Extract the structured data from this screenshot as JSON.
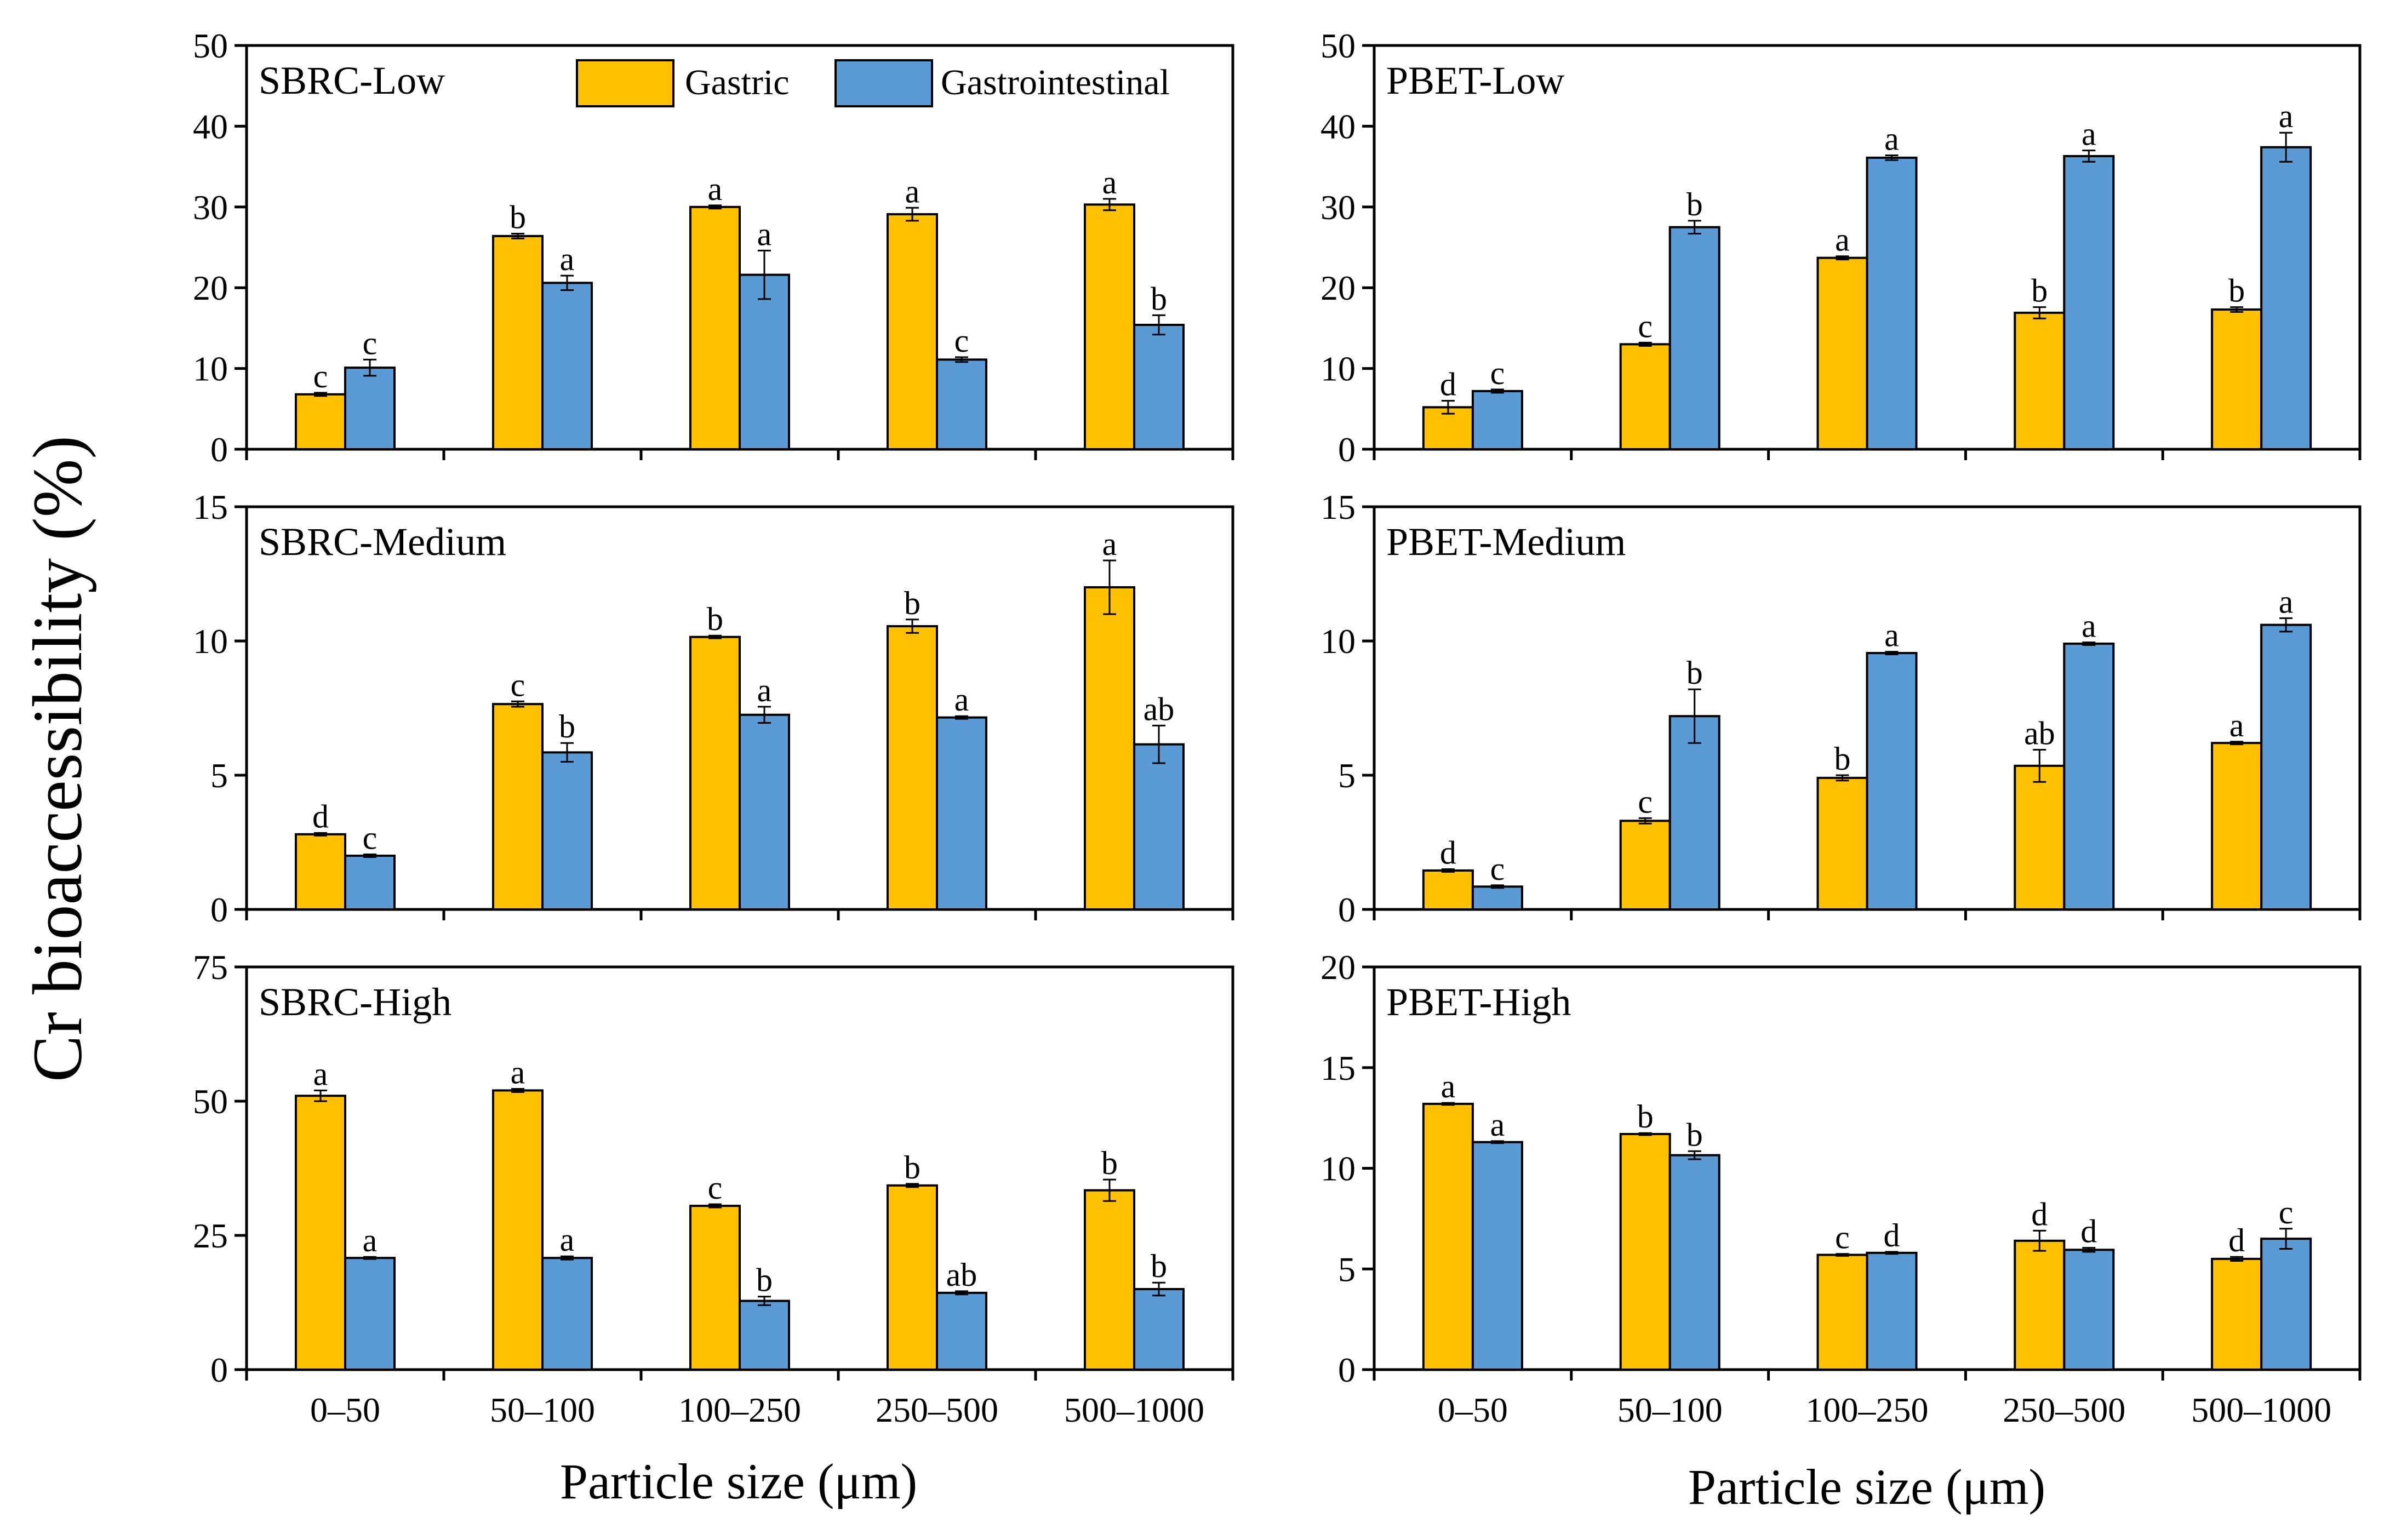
{
  "figure": {
    "y_axis_label": "Cr bioaccessibility (%)",
    "x_axis_label_left": "Particle size (μm)",
    "x_axis_label_right": "Particle size (μm)",
    "legend": [
      {
        "name": "Gastric",
        "color": "#FFC000"
      },
      {
        "name": "Gastrointestinal",
        "color": "#5B9BD5"
      }
    ],
    "categories": [
      "0–50",
      "50–100",
      "100–250",
      "250–500",
      "500–1000"
    ]
  },
  "chart_data": [
    {
      "type": "bar",
      "title": "SBRC-Low",
      "xlabel": "Particle size (μm)",
      "ylabel": "Cr bioaccessibility (%)",
      "categories": [
        "0–50",
        "50–100",
        "100–250",
        "250–500",
        "500–1000"
      ],
      "ylim": [
        0,
        50
      ],
      "yticks": [
        0,
        10,
        20,
        30,
        40,
        50
      ],
      "series": [
        {
          "name": "Gastric",
          "color": "#FFC000",
          "values": [
            6.8,
            26.4,
            30.0,
            29.1,
            30.3
          ],
          "errors": [
            0.2,
            0.3,
            0.2,
            0.8,
            0.7
          ],
          "labels": [
            "c",
            "b",
            "a",
            "a",
            "a"
          ]
        },
        {
          "name": "Gastrointestinal",
          "color": "#5B9BD5",
          "values": [
            10.1,
            20.6,
            21.6,
            11.1,
            15.4
          ],
          "errors": [
            1.0,
            0.9,
            3.0,
            0.3,
            1.2
          ],
          "labels": [
            "c",
            "a",
            "a",
            "c",
            "b"
          ]
        }
      ]
    },
    {
      "type": "bar",
      "title": "PBET-Low",
      "xlabel": "Particle size (μm)",
      "ylabel": "Cr bioaccessibility (%)",
      "categories": [
        "0–50",
        "50–100",
        "100–250",
        "250–500",
        "500–1000"
      ],
      "ylim": [
        0,
        50
      ],
      "yticks": [
        0,
        10,
        20,
        30,
        40,
        50
      ],
      "series": [
        {
          "name": "Gastric",
          "color": "#FFC000",
          "values": [
            5.2,
            13.0,
            23.7,
            16.9,
            17.3
          ],
          "errors": [
            0.8,
            0.2,
            0.2,
            0.7,
            0.3
          ],
          "labels": [
            "d",
            "c",
            "a",
            "b",
            "b"
          ]
        },
        {
          "name": "Gastrointestinal",
          "color": "#5B9BD5",
          "values": [
            7.2,
            27.5,
            36.1,
            36.3,
            37.4
          ],
          "errors": [
            0.2,
            0.8,
            0.3,
            0.7,
            1.8
          ],
          "labels": [
            "c",
            "b",
            "a",
            "a",
            "a"
          ]
        }
      ]
    },
    {
      "type": "bar",
      "title": "SBRC-Medium",
      "xlabel": "Particle size (μm)",
      "ylabel": "Cr bioaccessibility (%)",
      "categories": [
        "0–50",
        "50–100",
        "100–250",
        "250–500",
        "500–1000"
      ],
      "ylim": [
        0,
        15
      ],
      "yticks": [
        0,
        5,
        10,
        15
      ],
      "series": [
        {
          "name": "Gastric",
          "color": "#FFC000",
          "values": [
            2.8,
            7.65,
            10.15,
            10.55,
            12.0
          ],
          "errors": [
            0.05,
            0.1,
            0.05,
            0.25,
            1.0
          ],
          "labels": [
            "d",
            "c",
            "b",
            "b",
            "a"
          ]
        },
        {
          "name": "Gastrointestinal",
          "color": "#5B9BD5",
          "values": [
            2.0,
            5.85,
            7.25,
            7.15,
            6.15
          ],
          "errors": [
            0.05,
            0.35,
            0.3,
            0.05,
            0.7
          ],
          "labels": [
            "c",
            "b",
            "a",
            "a",
            "ab"
          ]
        }
      ]
    },
    {
      "type": "bar",
      "title": "PBET-Medium",
      "xlabel": "Particle size (μm)",
      "ylabel": "Cr bioaccessibility (%)",
      "categories": [
        "0–50",
        "50–100",
        "100–250",
        "250–500",
        "500–1000"
      ],
      "ylim": [
        0,
        15
      ],
      "yticks": [
        0,
        5,
        10,
        15
      ],
      "series": [
        {
          "name": "Gastric",
          "color": "#FFC000",
          "values": [
            1.45,
            3.3,
            4.9,
            5.35,
            6.2
          ],
          "errors": [
            0.05,
            0.1,
            0.1,
            0.6,
            0.05
          ],
          "labels": [
            "d",
            "c",
            "b",
            "ab",
            "a"
          ]
        },
        {
          "name": "Gastrointestinal",
          "color": "#5B9BD5",
          "values": [
            0.85,
            7.2,
            9.55,
            9.9,
            10.6
          ],
          "errors": [
            0.05,
            1.0,
            0.05,
            0.05,
            0.25
          ],
          "labels": [
            "c",
            "b",
            "a",
            "a",
            "a"
          ]
        }
      ]
    },
    {
      "type": "bar",
      "title": "SBRC-High",
      "xlabel": "Particle size (μm)",
      "ylabel": "Cr bioaccessibility (%)",
      "categories": [
        "0–50",
        "50–100",
        "100–250",
        "250–500",
        "500–1000"
      ],
      "ylim": [
        0,
        75
      ],
      "yticks": [
        0,
        25,
        50,
        75
      ],
      "series": [
        {
          "name": "Gastric",
          "color": "#FFC000",
          "values": [
            51.0,
            52.0,
            30.5,
            34.3,
            33.4
          ],
          "errors": [
            1.0,
            0.3,
            0.3,
            0.3,
            2.0
          ],
          "labels": [
            "a",
            "a",
            "c",
            "b",
            "b"
          ]
        },
        {
          "name": "Gastrointestinal",
          "color": "#5B9BD5",
          "values": [
            20.8,
            20.8,
            12.8,
            14.3,
            15.0
          ],
          "errors": [
            0.2,
            0.3,
            0.8,
            0.3,
            1.2
          ],
          "labels": [
            "a",
            "a",
            "b",
            "ab",
            "b"
          ]
        }
      ]
    },
    {
      "type": "bar",
      "title": "PBET-High",
      "xlabel": "Particle size (μm)",
      "ylabel": "Cr bioaccessibility (%)",
      "categories": [
        "0–50",
        "50–100",
        "100–250",
        "250–500",
        "500–1000"
      ],
      "ylim": [
        0,
        20
      ],
      "yticks": [
        0,
        5,
        10,
        15,
        20
      ],
      "series": [
        {
          "name": "Gastric",
          "color": "#FFC000",
          "values": [
            13.2,
            11.7,
            5.7,
            6.4,
            5.5
          ],
          "errors": [
            0.05,
            0.05,
            0.05,
            0.5,
            0.1
          ],
          "labels": [
            "a",
            "b",
            "c",
            "d",
            "d"
          ]
        },
        {
          "name": "Gastrointestinal",
          "color": "#5B9BD5",
          "values": [
            11.3,
            10.65,
            5.8,
            5.95,
            6.5
          ],
          "errors": [
            0.05,
            0.2,
            0.05,
            0.1,
            0.5
          ],
          "labels": [
            "a",
            "b",
            "d",
            "d",
            "c"
          ]
        }
      ]
    }
  ]
}
